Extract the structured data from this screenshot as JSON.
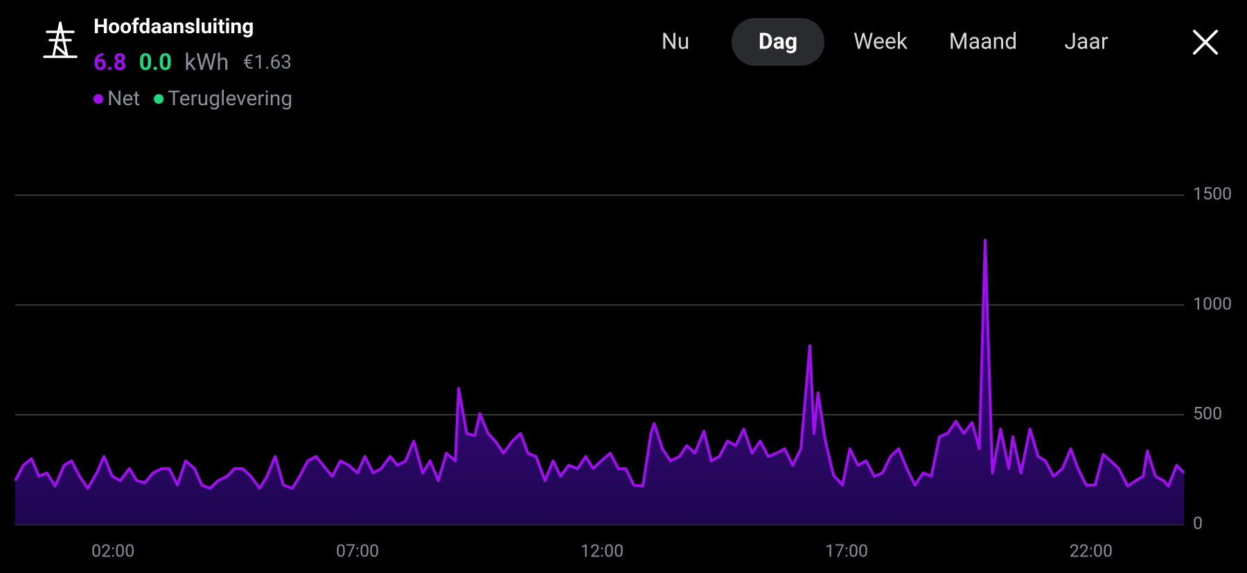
{
  "header": {
    "title": "Hoofdaansluiting",
    "net": "6.8",
    "feed_in": "0.0",
    "unit": "kWh",
    "cost": "€1.63",
    "legend": [
      {
        "name": "Net",
        "color": "#a20ef2"
      },
      {
        "name": "Teruglevering",
        "color": "#20d87c"
      }
    ]
  },
  "tabs": {
    "items": [
      "Nu",
      "Dag",
      "Week",
      "Maand",
      "Jaar"
    ],
    "selected": 1
  },
  "chart_data": {
    "type": "area",
    "x": [
      0,
      10,
      20,
      29,
      39,
      49,
      60,
      69,
      79,
      89,
      100,
      109,
      119,
      129,
      140,
      149,
      159,
      169,
      180,
      189,
      199,
      209,
      220,
      229,
      239,
      249,
      260,
      269,
      279,
      289,
      300,
      309,
      319,
      329,
      340,
      349,
      359,
      369,
      380,
      389,
      399,
      409,
      420,
      429,
      439,
      449,
      460,
      469,
      479,
      489,
      500,
      509,
      519,
      529,
      540,
      544,
      554,
      564,
      570,
      580,
      589,
      599,
      610,
      620,
      629,
      639,
      650,
      660,
      669,
      679,
      690,
      700,
      709,
      719,
      730,
      740,
      749,
      759,
      770,
      780,
      784,
      794,
      804,
      815,
      824,
      834,
      845,
      854,
      864,
      874,
      884,
      894,
      904,
      914,
      924,
      934,
      944,
      954,
      964,
      975,
      980,
      985,
      994,
      1004,
      1015,
      1024,
      1034,
      1044,
      1054,
      1064,
      1074,
      1084,
      1094,
      1104,
      1114,
      1124,
      1134,
      1144,
      1154,
      1164,
      1174,
      1183,
      1190,
      1199,
      1209,
      1219,
      1224,
      1234,
      1245,
      1255,
      1264,
      1274,
      1285,
      1295,
      1304,
      1314,
      1325,
      1335,
      1344,
      1354,
      1365,
      1375,
      1384,
      1389,
      1399,
      1409,
      1415,
      1425,
      1434
    ],
    "series": [
      {
        "name": "Net",
        "color": "#a20ef2",
        "values": [
          200,
          270,
          300,
          220,
          235,
          175,
          270,
          290,
          220,
          165,
          235,
          310,
          220,
          200,
          255,
          200,
          190,
          235,
          255,
          255,
          180,
          290,
          255,
          180,
          165,
          200,
          220,
          255,
          255,
          220,
          165,
          220,
          310,
          180,
          165,
          220,
          290,
          310,
          260,
          220,
          290,
          270,
          235,
          310,
          235,
          255,
          310,
          270,
          290,
          380,
          235,
          290,
          200,
          325,
          290,
          620,
          415,
          405,
          505,
          415,
          380,
          325,
          380,
          415,
          325,
          310,
          200,
          290,
          220,
          270,
          255,
          310,
          255,
          290,
          325,
          255,
          255,
          180,
          175,
          415,
          460,
          345,
          290,
          310,
          360,
          325,
          425,
          290,
          310,
          380,
          360,
          435,
          325,
          380,
          310,
          325,
          345,
          270,
          345,
          815,
          415,
          600,
          380,
          225,
          180,
          345,
          270,
          290,
          220,
          235,
          310,
          345,
          255,
          180,
          235,
          220,
          400,
          415,
          470,
          415,
          465,
          345,
          1295,
          235,
          435,
          255,
          400,
          235,
          435,
          310,
          290,
          220,
          255,
          345,
          255,
          180,
          180,
          320,
          290,
          255,
          175,
          200,
          220,
          335,
          220,
          200,
          175,
          270,
          235
        ]
      }
    ],
    "xlim": [
      0,
      1434
    ],
    "ylim": [
      0,
      1500
    ],
    "xticks": [
      {
        "value": 120,
        "label": "02:00"
      },
      {
        "value": 420,
        "label": "07:00"
      },
      {
        "value": 720,
        "label": "12:00"
      },
      {
        "value": 1020,
        "label": "17:00"
      },
      {
        "value": 1320,
        "label": "22:00"
      }
    ],
    "yticks": [
      0,
      500,
      1000,
      1500
    ],
    "grid": true
  }
}
